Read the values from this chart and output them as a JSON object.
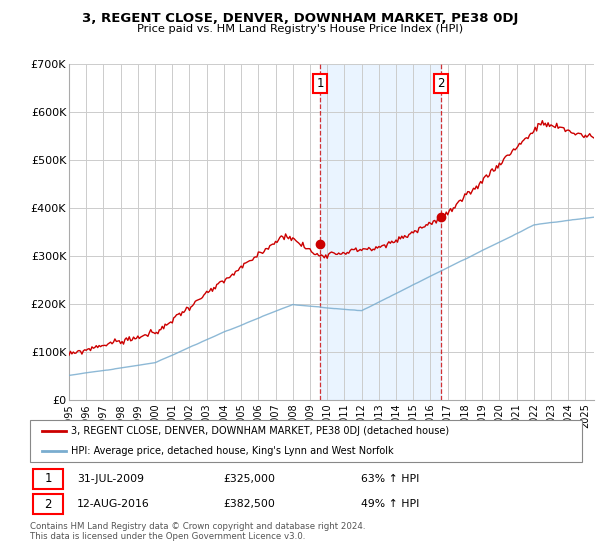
{
  "title": "3, REGENT CLOSE, DENVER, DOWNHAM MARKET, PE38 0DJ",
  "subtitle": "Price paid vs. HM Land Registry's House Price Index (HPI)",
  "ylabel_ticks": [
    "£0",
    "£100K",
    "£200K",
    "£300K",
    "£400K",
    "£500K",
    "£600K",
    "£700K"
  ],
  "ytick_values": [
    0,
    100000,
    200000,
    300000,
    400000,
    500000,
    600000,
    700000
  ],
  "ylim": [
    0,
    700000
  ],
  "xlim_start": 1995.0,
  "xlim_end": 2025.5,
  "sale1_date": 2009.58,
  "sale1_price": 325000,
  "sale1_label": "1",
  "sale2_date": 2016.62,
  "sale2_price": 382500,
  "sale2_label": "2",
  "red_line_color": "#cc0000",
  "blue_line_color": "#7aadcf",
  "background_color": "#ffffff",
  "plot_bg_color": "#ffffff",
  "grid_color": "#cccccc",
  "legend_label_red": "3, REGENT CLOSE, DENVER, DOWNHAM MARKET, PE38 0DJ (detached house)",
  "legend_label_blue": "HPI: Average price, detached house, King's Lynn and West Norfolk",
  "footnote": "Contains HM Land Registry data © Crown copyright and database right 2024.\nThis data is licensed under the Open Government Licence v3.0.",
  "shaded_color": "#ddeeff"
}
